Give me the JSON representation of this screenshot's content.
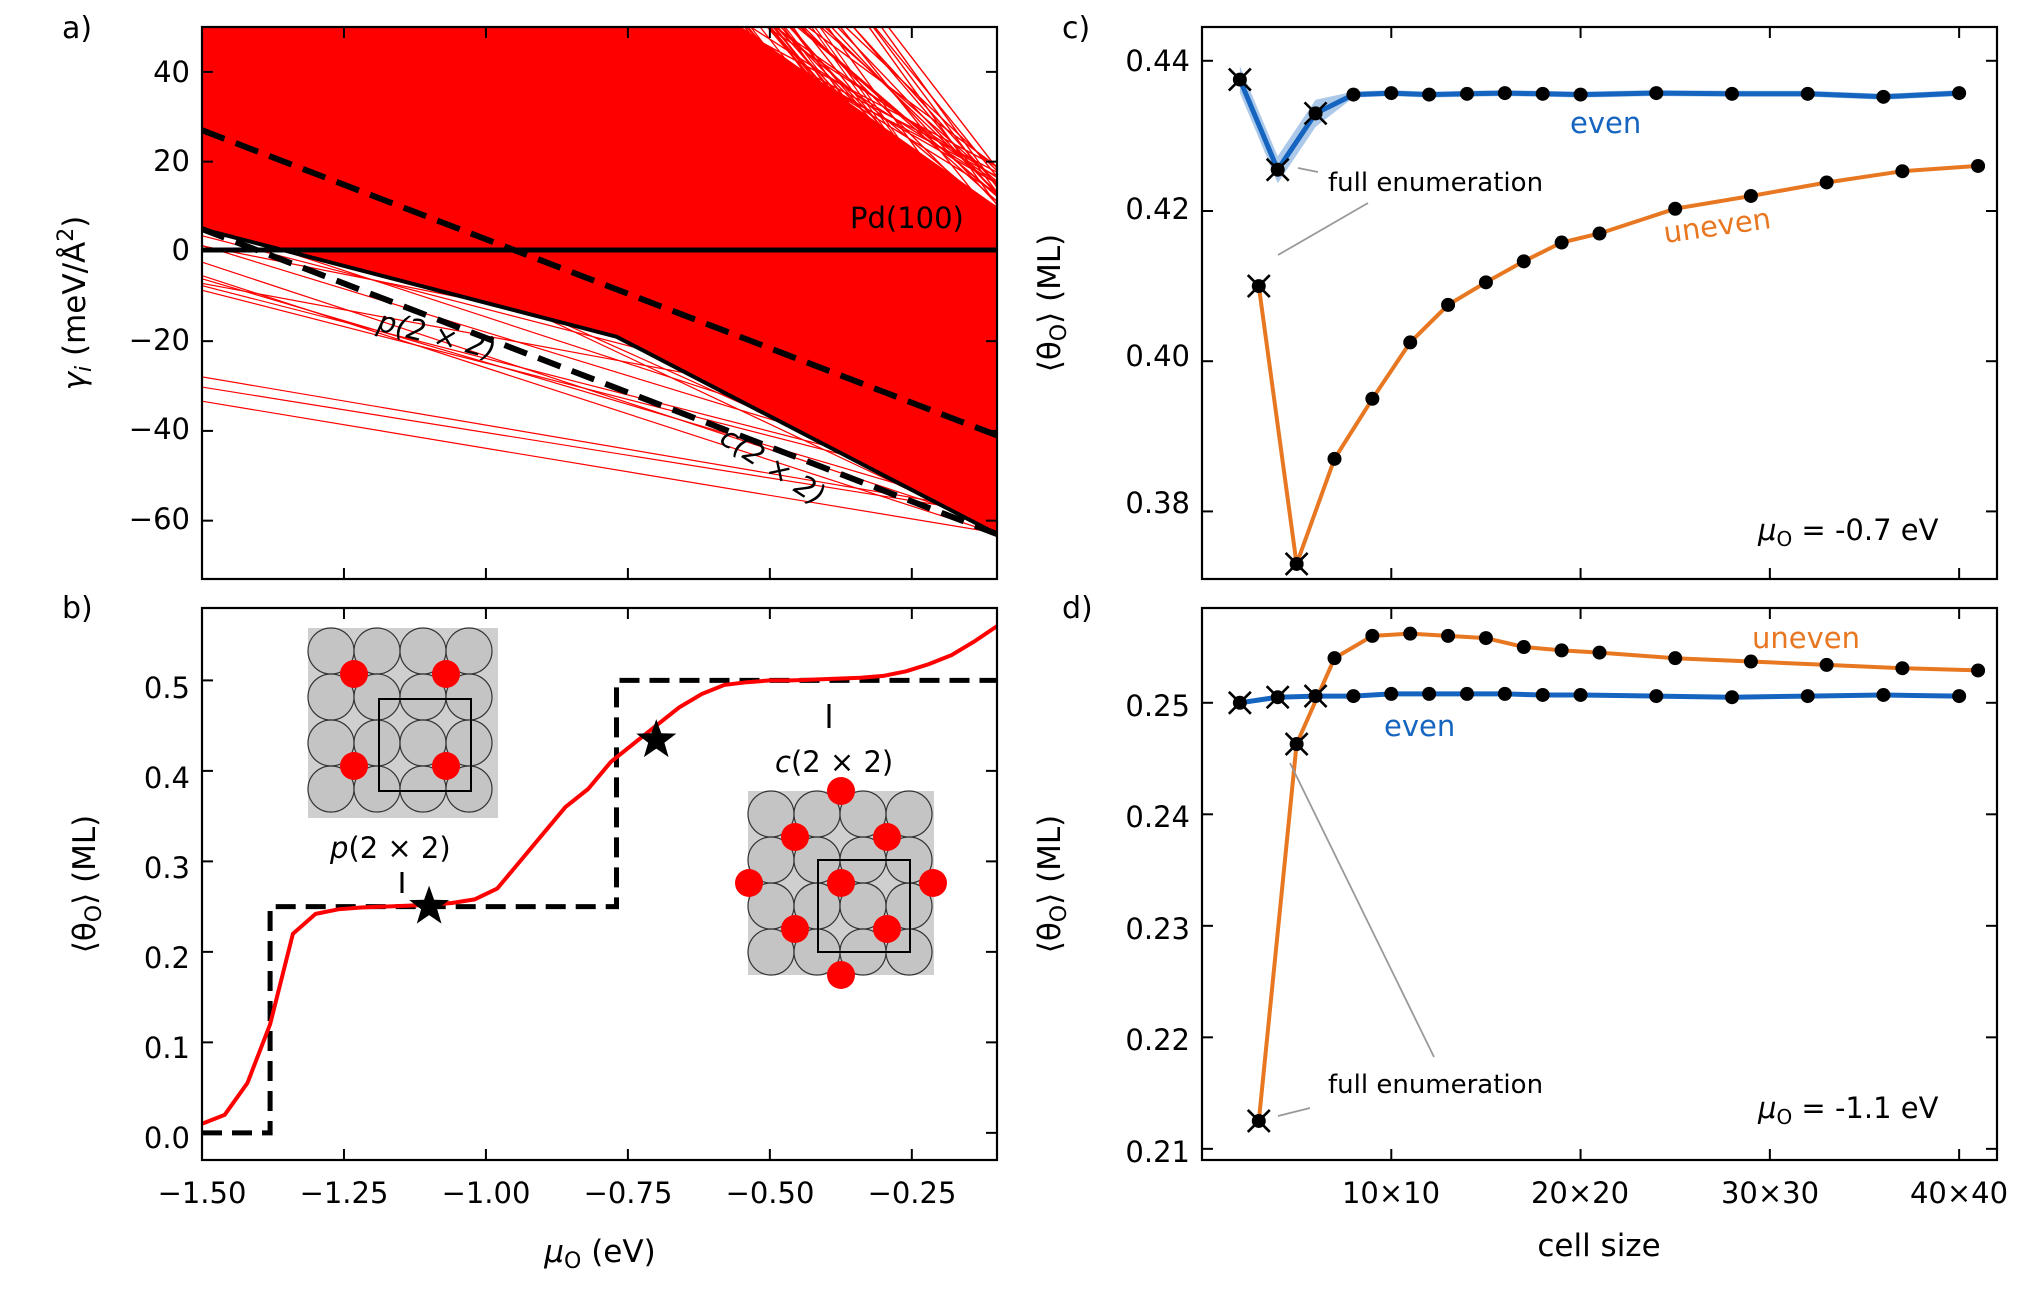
{
  "chart_data": [
    {
      "id": "a",
      "type": "line",
      "panel_label": "a)",
      "xlim": [
        -1.5,
        -0.1
      ],
      "ylim": [
        -73,
        50
      ],
      "ylabel_main": "γ",
      "ylabel_sub": "i",
      "ylabel_rest": " (meV/Å",
      "ylabel_sup": "2",
      "ylabel_end": ")",
      "yticks": [
        40,
        20,
        0,
        -20,
        -40,
        -60
      ],
      "ytick_labels": [
        "40",
        "20",
        "0",
        "−20",
        "−40",
        "−60"
      ],
      "line_color": "#ff0000",
      "ground_hull": {
        "x": [
          -1.5,
          -0.77,
          -0.1
        ],
        "y": [
          5,
          -19,
          -63
        ]
      },
      "p2x2_dashed": {
        "x": [
          -1.5,
          -0.1
        ],
        "y": [
          5,
          -63
        ]
      },
      "c2x2_dashed": {
        "x": [
          -1.5,
          -0.1
        ],
        "y": [
          27,
          -41
        ]
      },
      "pd100": {
        "x": [
          -1.5,
          -0.1
        ],
        "y": [
          0,
          0
        ]
      },
      "annotations": {
        "pd": "Pd(100)",
        "p": "p",
        "p_rest": "(2 × 2)",
        "c": "c",
        "c_rest": "(2 × 2)"
      }
    },
    {
      "id": "b",
      "type": "line",
      "panel_label": "b)",
      "xlim": [
        -1.5,
        -0.1
      ],
      "ylim": [
        -0.03,
        0.58
      ],
      "xlabel_main": "μ",
      "xlabel_sub": "O",
      "xlabel_rest": " (eV)",
      "ylabel_main": "⟨θ",
      "ylabel_sub": "O",
      "ylabel_rest": "⟩ (ML)",
      "xticks": [
        -1.5,
        -1.25,
        -1.0,
        -0.75,
        -0.5,
        -0.25
      ],
      "xtick_labels": [
        "−1.50",
        "−1.25",
        "−1.00",
        "−0.75",
        "−0.50",
        "−0.25"
      ],
      "yticks": [
        0.0,
        0.1,
        0.2,
        0.3,
        0.4,
        0.5
      ],
      "ytick_labels": [
        "0.0",
        "0.1",
        "0.2",
        "0.3",
        "0.4",
        "0.5"
      ],
      "curve": {
        "x": [
          -1.5,
          -1.46,
          -1.42,
          -1.38,
          -1.34,
          -1.3,
          -1.26,
          -1.22,
          -1.18,
          -1.14,
          -1.1,
          -1.06,
          -1.02,
          -0.98,
          -0.94,
          -0.9,
          -0.86,
          -0.82,
          -0.78,
          -0.74,
          -0.7,
          -0.66,
          -0.62,
          -0.58,
          -0.54,
          -0.5,
          -0.46,
          -0.42,
          -0.38,
          -0.34,
          -0.3,
          -0.26,
          -0.22,
          -0.18,
          -0.14,
          -0.1
        ],
        "y": [
          0.01,
          0.02,
          0.055,
          0.12,
          0.22,
          0.242,
          0.247,
          0.249,
          0.25,
          0.251,
          0.252,
          0.254,
          0.258,
          0.27,
          0.3,
          0.33,
          0.36,
          0.38,
          0.41,
          0.43,
          0.45,
          0.47,
          0.485,
          0.495,
          0.498,
          0.5,
          0.5,
          0.501,
          0.502,
          0.503,
          0.505,
          0.51,
          0.518,
          0.528,
          0.543,
          0.56
        ]
      },
      "steps": {
        "x": [
          -1.5,
          -1.38,
          -1.38,
          -0.77,
          -0.77,
          -0.1
        ],
        "y": [
          0.0,
          0.0,
          0.25,
          0.25,
          0.5,
          0.5
        ]
      },
      "stars": {
        "x": [
          -1.1,
          -0.7
        ],
        "y": [
          0.25,
          0.434
        ]
      },
      "annotations": {
        "p": "p",
        "p_rest": "(2 × 2)",
        "c": "c",
        "c_rest": "(2 × 2)"
      }
    },
    {
      "id": "c",
      "type": "line",
      "panel_label": "c)",
      "xlim": [
        0,
        42
      ],
      "ylim": [
        0.371,
        0.4445
      ],
      "ylabel_main": "⟨θ",
      "ylabel_sub": "O",
      "ylabel_rest": "⟩ (ML)",
      "yticks": [
        0.38,
        0.4,
        0.42,
        0.44
      ],
      "ytick_labels": [
        "0.38",
        "0.40",
        "0.42",
        "0.44"
      ],
      "series": [
        {
          "name": "even",
          "color": "#1565c0",
          "x": [
            2,
            4,
            6,
            8,
            10,
            12,
            14,
            16,
            18,
            20,
            24,
            28,
            32,
            36,
            40
          ],
          "values": [
            0.4375,
            0.4255,
            0.433,
            0.4355,
            0.4357,
            0.4355,
            0.4356,
            0.4357,
            0.4356,
            0.4355,
            0.4357,
            0.4356,
            0.4356,
            0.4352,
            0.4357
          ]
        },
        {
          "name": "uneven",
          "color": "#e87722",
          "x": [
            3,
            5,
            7,
            9,
            11,
            13,
            15,
            17,
            19,
            21,
            25,
            29,
            33,
            37,
            41
          ],
          "values": [
            0.41,
            0.373,
            0.387,
            0.395,
            0.4025,
            0.4075,
            0.4105,
            0.4133,
            0.4158,
            0.417,
            0.4203,
            0.422,
            0.4238,
            0.4253,
            0.426
          ]
        }
      ],
      "crosses": {
        "x": [
          2,
          4,
          6,
          3,
          5
        ],
        "y": [
          0.4375,
          0.4255,
          0.433,
          0.41,
          0.373
        ]
      },
      "annotations": {
        "even": "even",
        "uneven": "uneven",
        "full_enumeration": "full enumeration",
        "mu_main": "μ",
        "mu_sub": "O",
        "mu_value": " = -0.7 eV"
      }
    },
    {
      "id": "d",
      "type": "line",
      "panel_label": "d)",
      "xlim": [
        0,
        42
      ],
      "ylim": [
        0.209,
        0.2585
      ],
      "xlabel": "cell size",
      "xticks": [
        10,
        20,
        30,
        40
      ],
      "xtick_labels": [
        "10×10",
        "20×20",
        "30×30",
        "40×40"
      ],
      "ylabel_main": "⟨θ",
      "ylabel_sub": "O",
      "ylabel_rest": "⟩ (ML)",
      "yticks": [
        0.21,
        0.22,
        0.23,
        0.24,
        0.25
      ],
      "ytick_labels": [
        "0.21",
        "0.22",
        "0.23",
        "0.24",
        "0.25"
      ],
      "series": [
        {
          "name": "even",
          "color": "#1565c0",
          "x": [
            2,
            4,
            6,
            8,
            10,
            12,
            14,
            16,
            18,
            20,
            24,
            28,
            32,
            36,
            40
          ],
          "values": [
            0.25,
            0.2505,
            0.2506,
            0.2506,
            0.2508,
            0.2508,
            0.2508,
            0.2508,
            0.2507,
            0.2507,
            0.2506,
            0.2505,
            0.2506,
            0.2507,
            0.2506
          ]
        },
        {
          "name": "uneven",
          "color": "#e87722",
          "x": [
            3,
            5,
            7,
            9,
            11,
            13,
            15,
            17,
            19,
            21,
            25,
            29,
            33,
            37,
            41
          ],
          "values": [
            0.2125,
            0.2463,
            0.254,
            0.256,
            0.2562,
            0.256,
            0.2558,
            0.255,
            0.2547,
            0.2545,
            0.254,
            0.2537,
            0.2534,
            0.2531,
            0.2529
          ]
        }
      ],
      "crosses": {
        "x": [
          2,
          4,
          6,
          3,
          5
        ],
        "y": [
          0.25,
          0.2505,
          0.2506,
          0.2125,
          0.2463
        ]
      },
      "annotations": {
        "even": "even",
        "uneven": "uneven",
        "full_enumeration": "full enumeration",
        "mu_main": "μ",
        "mu_sub": "O",
        "mu_value": " = -1.1 eV"
      }
    }
  ]
}
